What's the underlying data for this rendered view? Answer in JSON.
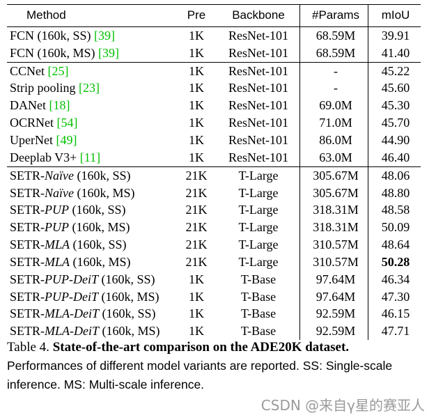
{
  "table": {
    "columns": [
      "Method",
      "Pre",
      "Backbone",
      "#Params",
      "mIoU"
    ],
    "groups": [
      [
        {
          "name": "FCN (160k, SS) ",
          "cite": "[39]",
          "pre": "1K",
          "backbone": "ResNet-101",
          "params": "68.59M",
          "miou": "39.91"
        },
        {
          "name": "FCN (160k, MS) ",
          "cite": "[39]",
          "pre": "1K",
          "backbone": "ResNet-101",
          "params": "68.59M",
          "miou": "41.40"
        }
      ],
      [
        {
          "name": "CCNet ",
          "cite": "[25]",
          "pre": "1K",
          "backbone": "ResNet-101",
          "params": "-",
          "miou": "45.22"
        },
        {
          "name": "Strip pooling ",
          "cite": "[23]",
          "pre": "1K",
          "backbone": "ResNet-101",
          "params": "-",
          "miou": "45.60"
        },
        {
          "name": "DANet ",
          "cite": "[18]",
          "pre": "1K",
          "backbone": "ResNet-101",
          "params": "69.0M",
          "miou": "45.30"
        },
        {
          "name": "OCRNet ",
          "cite": "[54]",
          "pre": "1K",
          "backbone": "ResNet-101",
          "params": "71.0M",
          "miou": "45.70"
        },
        {
          "name": "UperNet ",
          "cite": "[49]",
          "pre": "1K",
          "backbone": "ResNet-101",
          "params": "86.0M",
          "miou": "44.90"
        },
        {
          "name": "Deeplab V3+ ",
          "cite": "[11]",
          "pre": "1K",
          "backbone": "ResNet-101",
          "params": "63.0M",
          "miou": "46.40"
        }
      ],
      [
        {
          "name": "SETR-",
          "variant": "Naïve",
          "suffix": " (160k, SS)",
          "pre": "21K",
          "backbone": "T-Large",
          "params": "305.67M",
          "miou": "48.06"
        },
        {
          "name": "SETR-",
          "variant": "Naïve",
          "suffix": " (160k, MS)",
          "pre": "21K",
          "backbone": "T-Large",
          "params": "305.67M",
          "miou": "48.80"
        },
        {
          "name": "SETR-",
          "variant": "PUP",
          "suffix": " (160k, SS)",
          "pre": "21K",
          "backbone": "T-Large",
          "params": "318.31M",
          "miou": "48.58"
        },
        {
          "name": "SETR-",
          "variant": "PUP",
          "suffix": " (160k, MS)",
          "pre": "21K",
          "backbone": "T-Large",
          "params": "318.31M",
          "miou": "50.09"
        },
        {
          "name": "SETR-",
          "variant": "MLA",
          "suffix": " (160k, SS)",
          "pre": "21K",
          "backbone": "T-Large",
          "params": "310.57M",
          "miou": "48.64"
        },
        {
          "name": "SETR-",
          "variant": "MLA",
          "suffix": " (160k, MS)",
          "pre": "21K",
          "backbone": "T-Large",
          "params": "310.57M",
          "miou": "50.28",
          "best": true
        },
        {
          "name": "SETR-",
          "variant": "PUP-DeiT",
          "suffix": " (160k, SS)",
          "pre": "1K",
          "backbone": "T-Base",
          "params": "97.64M",
          "miou": "46.34"
        },
        {
          "name": "SETR-",
          "variant": "PUP-DeiT",
          "suffix": " (160k, MS)",
          "pre": "1K",
          "backbone": "T-Base",
          "params": "97.64M",
          "miou": "47.30"
        },
        {
          "name": "SETR-",
          "variant": "MLA-DeiT",
          "suffix": " (160k, SS)",
          "pre": "1K",
          "backbone": "T-Base",
          "params": "92.59M",
          "miou": "46.15"
        },
        {
          "name": "SETR-",
          "variant": "MLA-DeiT",
          "suffix": " (160k, MS)",
          "pre": "1K",
          "backbone": "T-Base",
          "params": "92.59M",
          "miou": "47.71"
        }
      ]
    ]
  },
  "caption": {
    "label": "Table 4. ",
    "title": "State-of-the-art comparison on the ADE20K dataset.",
    "body": "Performances of different model variants are reported. SS: Single-scale inference. MS: Multi-scale inference."
  },
  "watermark": "CSDN @来自γ星的赛亚人",
  "colors": {
    "citation": "#00c000",
    "watermark": "#9a9a9a"
  }
}
